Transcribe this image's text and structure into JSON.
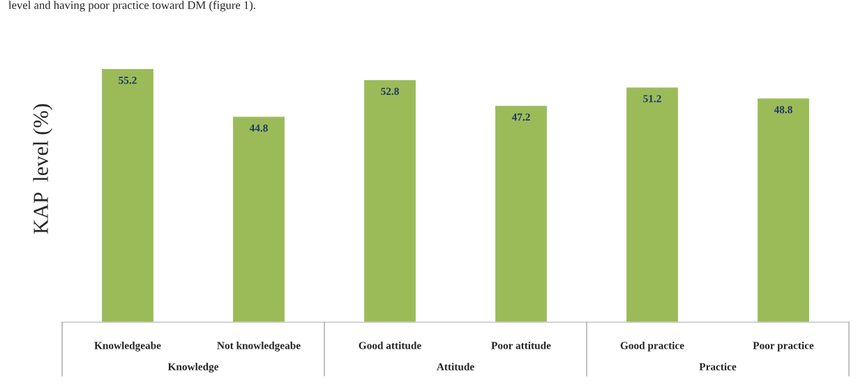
{
  "chart_data": {
    "type": "bar",
    "ylabel": "KAP  level (%)",
    "categories": [
      "Knowledgeabe",
      "Not knowledgeabe",
      "Good attitude",
      "Poor attitude",
      "Good practice",
      "Poor practice"
    ],
    "values": [
      55.2,
      44.8,
      52.8,
      47.2,
      51.2,
      48.8
    ],
    "color": "#9bbb59",
    "data_labels": true,
    "grid": false,
    "annotations": [
      "level and having poor practice toward DM (figure 1).",
      "Knowledge",
      "Attitude",
      "Practice"
    ]
  }
}
